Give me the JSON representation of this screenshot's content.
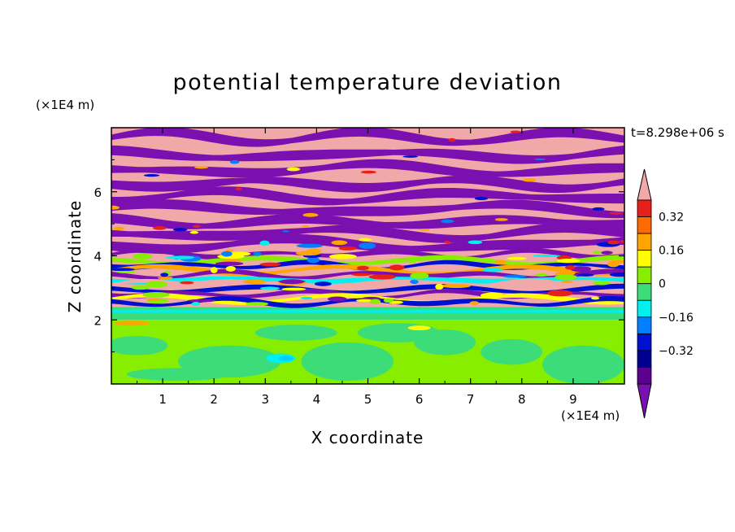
{
  "chart_data": {
    "type": "heatmap",
    "title": "potential temperature deviation",
    "xlabel": "X coordinate",
    "ylabel": "Z coordinate",
    "x_unit": "(×1E4 m)",
    "y_unit": "(×1E4 m)",
    "time_label": "t=8.298e+06 s",
    "xlim": [
      0,
      10
    ],
    "ylim": [
      0,
      8
    ],
    "x_ticks": [
      "1",
      "2",
      "3",
      "4",
      "5",
      "6",
      "7",
      "8",
      "9"
    ],
    "y_ticks": [
      "2",
      "4",
      "6"
    ],
    "colorbar": {
      "levels": [
        -0.48,
        -0.4,
        -0.32,
        -0.24,
        -0.16,
        -0.08,
        0,
        0.08,
        0.16,
        0.24,
        0.32,
        0.4,
        0.48
      ],
      "tick_labels": [
        "0.32",
        "0.16",
        "0",
        "-0.16",
        "-0.32"
      ],
      "colors_top_to_bottom": [
        "#f0a8a8",
        "#e8201c",
        "#ff6a00",
        "#ffa500",
        "#ffff00",
        "#88ee00",
        "#3cdc78",
        "#00f0f0",
        "#0080ff",
        "#0010d0",
        "#000090",
        "#5c0090",
        "#7a10b0"
      ],
      "extend": "both"
    },
    "layers": [
      {
        "z_range": [
          0,
          0.7
        ],
        "dominant_value": 0.04,
        "description_colors": [
          "#88ee00",
          "#3cdc78"
        ]
      },
      {
        "z_range": [
          0.7,
          2.0
        ],
        "dominant_value": 0.04,
        "description_colors": [
          "#88ee00",
          "#3cdc78"
        ]
      },
      {
        "z_range": [
          2.0,
          2.4
        ],
        "dominant_value": -0.04,
        "description_colors": [
          "#3cdc78",
          "#00f0f0"
        ]
      },
      {
        "z_range": [
          2.4,
          4.2
        ],
        "dominant_value": 0.0,
        "description_colors": [
          "mixed"
        ]
      },
      {
        "z_range": [
          4.2,
          8.0
        ],
        "dominant_value": 0.5,
        "description_colors": [
          "#f0a8a8",
          "#7a10b0"
        ]
      }
    ]
  }
}
